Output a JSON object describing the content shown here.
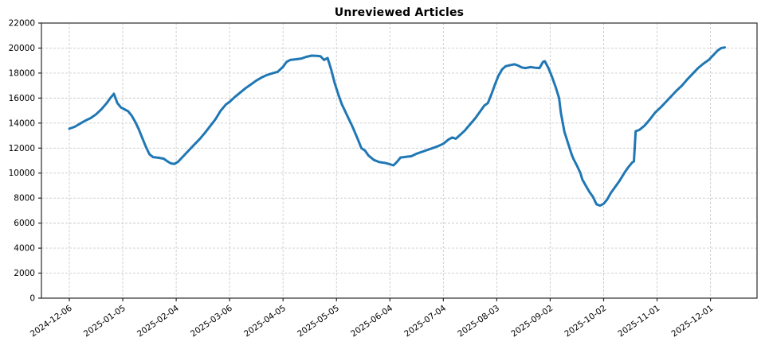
{
  "window": {
    "title": "Unreviewed Articles"
  },
  "chart_data": {
    "type": "line",
    "title": "Unreviewed Articles",
    "xlabel": "",
    "ylabel": "",
    "ylim": [
      0,
      22000
    ],
    "grid": true,
    "legend": "none",
    "background": "#ffffff",
    "grid_color": "#cccccc",
    "spine_color": "#3a3a3a",
    "tick_color": "#262626",
    "text_color": "#000000",
    "line_width": 3,
    "x_tick_labels": [
      "2024-12-06",
      "2025-01-05",
      "2025-02-04",
      "2025-03-06",
      "2025-04-05",
      "2025-05-05",
      "2025-06-04",
      "2025-07-04",
      "2025-08-03",
      "2025-09-02",
      "2025-10-02",
      "2025-11-01",
      "2025-12-01"
    ],
    "y_ticks": [
      0,
      2000,
      4000,
      6000,
      8000,
      10000,
      12000,
      14000,
      16000,
      18000,
      20000,
      22000
    ],
    "series": [
      {
        "name": "Unreviewed Articles",
        "color": "#1f77b4",
        "points": [
          [
            "2024-12-06",
            13550
          ],
          [
            "2024-12-09",
            13700
          ],
          [
            "2024-12-12",
            13950
          ],
          [
            "2024-12-15",
            14200
          ],
          [
            "2024-12-18",
            14400
          ],
          [
            "2024-12-21",
            14700
          ],
          [
            "2024-12-24",
            15100
          ],
          [
            "2024-12-27",
            15600
          ],
          [
            "2024-12-29",
            16000
          ],
          [
            "2024-12-31",
            16350
          ],
          [
            "2025-01-02",
            15600
          ],
          [
            "2025-01-04",
            15250
          ],
          [
            "2025-01-06",
            15100
          ],
          [
            "2025-01-08",
            14950
          ],
          [
            "2025-01-10",
            14600
          ],
          [
            "2025-01-12",
            14100
          ],
          [
            "2025-01-14",
            13500
          ],
          [
            "2025-01-16",
            12800
          ],
          [
            "2025-01-18",
            12100
          ],
          [
            "2025-01-20",
            11500
          ],
          [
            "2025-01-22",
            11280
          ],
          [
            "2025-01-25",
            11230
          ],
          [
            "2025-01-28",
            11150
          ],
          [
            "2025-01-30",
            10950
          ],
          [
            "2025-02-01",
            10780
          ],
          [
            "2025-02-03",
            10730
          ],
          [
            "2025-02-05",
            10900
          ],
          [
            "2025-02-08",
            11350
          ],
          [
            "2025-02-11",
            11800
          ],
          [
            "2025-02-14",
            12250
          ],
          [
            "2025-02-17",
            12700
          ],
          [
            "2025-02-20",
            13200
          ],
          [
            "2025-02-23",
            13750
          ],
          [
            "2025-02-26",
            14300
          ],
          [
            "2025-03-01",
            15000
          ],
          [
            "2025-03-04",
            15500
          ],
          [
            "2025-03-06",
            15700
          ],
          [
            "2025-03-09",
            16100
          ],
          [
            "2025-03-12",
            16450
          ],
          [
            "2025-03-15",
            16800
          ],
          [
            "2025-03-18",
            17100
          ],
          [
            "2025-03-21",
            17400
          ],
          [
            "2025-03-24",
            17650
          ],
          [
            "2025-03-27",
            17850
          ],
          [
            "2025-03-30",
            17980
          ],
          [
            "2025-04-02",
            18100
          ],
          [
            "2025-04-05",
            18500
          ],
          [
            "2025-04-07",
            18900
          ],
          [
            "2025-04-09",
            19050
          ],
          [
            "2025-04-12",
            19100
          ],
          [
            "2025-04-15",
            19150
          ],
          [
            "2025-04-18",
            19300
          ],
          [
            "2025-04-21",
            19390
          ],
          [
            "2025-04-24",
            19380
          ],
          [
            "2025-04-26",
            19350
          ],
          [
            "2025-04-28",
            19050
          ],
          [
            "2025-04-30",
            19200
          ],
          [
            "2025-05-02",
            18300
          ],
          [
            "2025-05-04",
            17200
          ],
          [
            "2025-05-06",
            16300
          ],
          [
            "2025-05-08",
            15500
          ],
          [
            "2025-05-11",
            14600
          ],
          [
            "2025-05-14",
            13700
          ],
          [
            "2025-05-17",
            12700
          ],
          [
            "2025-05-19",
            12000
          ],
          [
            "2025-05-21",
            11800
          ],
          [
            "2025-05-23",
            11400
          ],
          [
            "2025-05-26",
            11050
          ],
          [
            "2025-05-29",
            10880
          ],
          [
            "2025-06-01",
            10820
          ],
          [
            "2025-06-03",
            10750
          ],
          [
            "2025-06-06",
            10620
          ],
          [
            "2025-06-08",
            10900
          ],
          [
            "2025-06-10",
            11250
          ],
          [
            "2025-06-13",
            11300
          ],
          [
            "2025-06-16",
            11350
          ],
          [
            "2025-06-19",
            11550
          ],
          [
            "2025-06-22",
            11700
          ],
          [
            "2025-06-25",
            11850
          ],
          [
            "2025-06-28",
            12000
          ],
          [
            "2025-07-01",
            12150
          ],
          [
            "2025-07-04",
            12350
          ],
          [
            "2025-07-07",
            12700
          ],
          [
            "2025-07-09",
            12850
          ],
          [
            "2025-07-11",
            12750
          ],
          [
            "2025-07-13",
            13000
          ],
          [
            "2025-07-16",
            13400
          ],
          [
            "2025-07-19",
            13900
          ],
          [
            "2025-07-22",
            14400
          ],
          [
            "2025-07-25",
            15000
          ],
          [
            "2025-07-27",
            15400
          ],
          [
            "2025-07-29",
            15600
          ],
          [
            "2025-07-31",
            16300
          ],
          [
            "2025-08-02",
            17100
          ],
          [
            "2025-08-04",
            17800
          ],
          [
            "2025-08-06",
            18300
          ],
          [
            "2025-08-08",
            18550
          ],
          [
            "2025-08-11",
            18650
          ],
          [
            "2025-08-13",
            18700
          ],
          [
            "2025-08-15",
            18600
          ],
          [
            "2025-08-17",
            18450
          ],
          [
            "2025-08-19",
            18400
          ],
          [
            "2025-08-22",
            18480
          ],
          [
            "2025-08-25",
            18420
          ],
          [
            "2025-08-27",
            18400
          ],
          [
            "2025-08-29",
            18900
          ],
          [
            "2025-08-30",
            18950
          ],
          [
            "2025-09-01",
            18400
          ],
          [
            "2025-09-03",
            17700
          ],
          [
            "2025-09-05",
            16900
          ],
          [
            "2025-09-07",
            16000
          ],
          [
            "2025-09-08",
            14800
          ],
          [
            "2025-09-10",
            13300
          ],
          [
            "2025-09-12",
            12400
          ],
          [
            "2025-09-14",
            11500
          ],
          [
            "2025-09-15",
            11150
          ],
          [
            "2025-09-17",
            10600
          ],
          [
            "2025-09-19",
            10000
          ],
          [
            "2025-09-20",
            9500
          ],
          [
            "2025-09-22",
            9000
          ],
          [
            "2025-09-24",
            8500
          ],
          [
            "2025-09-26",
            8100
          ],
          [
            "2025-09-28",
            7500
          ],
          [
            "2025-09-30",
            7400
          ],
          [
            "2025-10-02",
            7550
          ],
          [
            "2025-10-04",
            7900
          ],
          [
            "2025-10-06",
            8400
          ],
          [
            "2025-10-08",
            8800
          ],
          [
            "2025-10-11",
            9400
          ],
          [
            "2025-10-14",
            10100
          ],
          [
            "2025-10-16",
            10500
          ],
          [
            "2025-10-18",
            10850
          ],
          [
            "2025-10-19",
            10935
          ],
          [
            "2025-10-20",
            13350
          ],
          [
            "2025-10-22",
            13450
          ],
          [
            "2025-10-25",
            13800
          ],
          [
            "2025-10-28",
            14300
          ],
          [
            "2025-10-31",
            14850
          ],
          [
            "2025-11-03",
            15250
          ],
          [
            "2025-11-06",
            15700
          ],
          [
            "2025-11-09",
            16150
          ],
          [
            "2025-11-12",
            16600
          ],
          [
            "2025-11-15",
            17000
          ],
          [
            "2025-11-18",
            17500
          ],
          [
            "2025-11-21",
            17950
          ],
          [
            "2025-11-24",
            18400
          ],
          [
            "2025-11-27",
            18750
          ],
          [
            "2025-11-30",
            19050
          ],
          [
            "2025-12-03",
            19500
          ],
          [
            "2025-12-05",
            19800
          ],
          [
            "2025-12-07",
            20000
          ],
          [
            "2025-12-09",
            20050
          ]
        ]
      }
    ]
  }
}
